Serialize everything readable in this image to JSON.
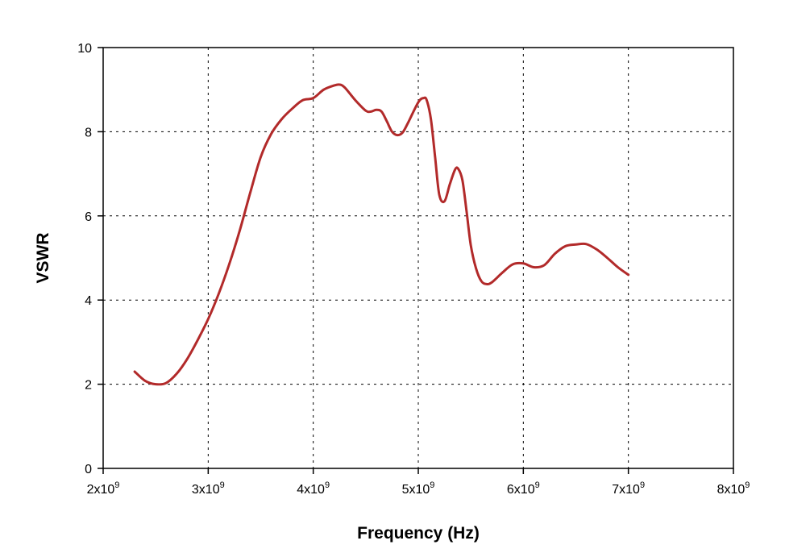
{
  "chart_data": {
    "type": "line",
    "title": "",
    "xlabel": "Frequency (Hz)",
    "ylabel": "VSWR",
    "xlim": [
      2000000000.0,
      8000000000.0
    ],
    "ylim": [
      0,
      10
    ],
    "grid": true,
    "x_ticks": [
      {
        "value": 2000000000.0,
        "mantissa": "2x10",
        "exp": "9"
      },
      {
        "value": 3000000000.0,
        "mantissa": "3x10",
        "exp": "9"
      },
      {
        "value": 4000000000.0,
        "mantissa": "4x10",
        "exp": "9"
      },
      {
        "value": 5000000000.0,
        "mantissa": "5x10",
        "exp": "9"
      },
      {
        "value": 6000000000.0,
        "mantissa": "6x10",
        "exp": "9"
      },
      {
        "value": 7000000000.0,
        "mantissa": "7x10",
        "exp": "9"
      },
      {
        "value": 8000000000.0,
        "mantissa": "8x10",
        "exp": "9"
      }
    ],
    "y_ticks": [
      0,
      2,
      4,
      6,
      8,
      10
    ],
    "series": [
      {
        "color": "#b22a2a",
        "x": [
          2300000000.0,
          2400000000.0,
          2500000000.0,
          2600000000.0,
          2700000000.0,
          2800000000.0,
          2900000000.0,
          3000000000.0,
          3100000000.0,
          3200000000.0,
          3300000000.0,
          3400000000.0,
          3500000000.0,
          3600000000.0,
          3700000000.0,
          3800000000.0,
          3900000000.0,
          4000000000.0,
          4100000000.0,
          4200000000.0,
          4250000000.0,
          4300000000.0,
          4400000000.0,
          4500000000.0,
          4550000000.0,
          4600000000.0,
          4650000000.0,
          4700000000.0,
          4750000000.0,
          4800000000.0,
          4850000000.0,
          4900000000.0,
          5000000000.0,
          5050000000.0,
          5080000000.0,
          5120000000.0,
          5160000000.0,
          5200000000.0,
          5250000000.0,
          5300000000.0,
          5350000000.0,
          5380000000.0,
          5420000000.0,
          5460000000.0,
          5500000000.0,
          5550000000.0,
          5600000000.0,
          5650000000.0,
          5700000000.0,
          5800000000.0,
          5900000000.0,
          6000000000.0,
          6100000000.0,
          6200000000.0,
          6300000000.0,
          6400000000.0,
          6500000000.0,
          6600000000.0,
          6700000000.0,
          6800000000.0,
          6900000000.0,
          7000000000.0
        ],
        "y": [
          2.3,
          2.08,
          2.0,
          2.03,
          2.25,
          2.6,
          3.05,
          3.55,
          4.15,
          4.85,
          5.65,
          6.55,
          7.4,
          7.95,
          8.3,
          8.55,
          8.75,
          8.8,
          9.0,
          9.1,
          9.12,
          9.05,
          8.75,
          8.5,
          8.48,
          8.52,
          8.48,
          8.25,
          8.0,
          7.92,
          7.98,
          8.2,
          8.7,
          8.8,
          8.75,
          8.3,
          7.4,
          6.5,
          6.35,
          6.75,
          7.1,
          7.12,
          6.85,
          6.1,
          5.3,
          4.75,
          4.45,
          4.38,
          4.42,
          4.65,
          4.85,
          4.87,
          4.78,
          4.83,
          5.1,
          5.28,
          5.32,
          5.33,
          5.2,
          5.0,
          4.78,
          4.6
        ]
      }
    ]
  }
}
